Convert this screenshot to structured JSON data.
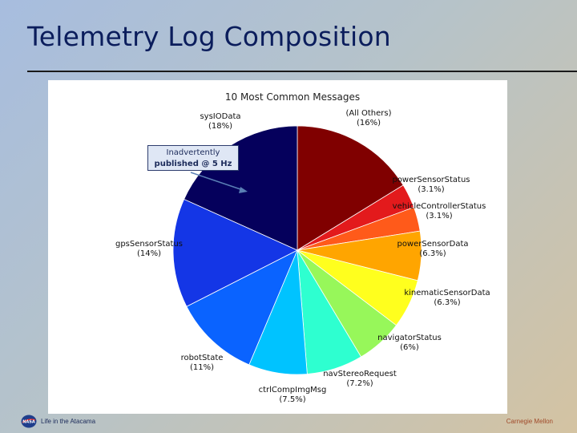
{
  "slide": {
    "title": "Telemetry Log Composition",
    "footer_left": "Life in the Atacama",
    "footer_right": "Carnegie Mellon"
  },
  "callout": {
    "line1": "Inadvertently",
    "line2": "published @ 5 Hz"
  },
  "chart_data": {
    "type": "pie",
    "title": "10 Most Common Messages",
    "slices": [
      {
        "name": "(All Others)",
        "value_label": "(16%)",
        "value": 16,
        "color": "#800000"
      },
      {
        "name": "powerSensorStatus",
        "value_label": "(3.1%)",
        "value": 3.1,
        "color": "#e31a1c"
      },
      {
        "name": "vehicleControllerStatus",
        "value_label": "(3.1%)",
        "value": 3.1,
        "color": "#ff5a1a"
      },
      {
        "name": "powerSensorData",
        "value_label": "(6.3%)",
        "value": 6.3,
        "color": "#ffa500"
      },
      {
        "name": "kinematicSensorData",
        "value_label": "(6.3%)",
        "value": 6.3,
        "color": "#ffff1e"
      },
      {
        "name": "navigatorStatus",
        "value_label": "(6%)",
        "value": 6,
        "color": "#97f75a"
      },
      {
        "name": "navStereoRequest",
        "value_label": "(7.2%)",
        "value": 7.2,
        "color": "#2effd0"
      },
      {
        "name": "ctrlCompImgMsg",
        "value_label": "(7.5%)",
        "value": 7.5,
        "color": "#00c3ff"
      },
      {
        "name": "robotState",
        "value_label": "(11%)",
        "value": 11,
        "color": "#0a63ff"
      },
      {
        "name": "gpsSensorStatus",
        "value_label": "(14%)",
        "value": 14,
        "color": "#1436e6"
      },
      {
        "name": "sysIOData",
        "value_label": "(18%)",
        "value": 18,
        "color": "#05005c"
      }
    ]
  }
}
